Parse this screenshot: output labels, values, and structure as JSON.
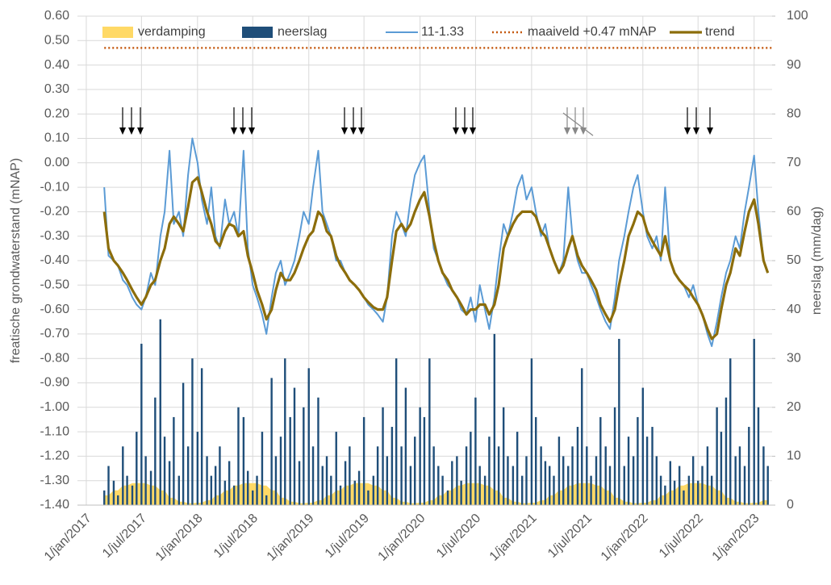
{
  "chart_data": {
    "type": "combo",
    "y_axis_label": "freatische grondwaterstand (mNAP)",
    "y2_axis_label": "neerslag (mm/dag)",
    "xlim": [
      "2016-12-03",
      "2023-03-01"
    ],
    "ylim": [
      -1.4,
      0.6
    ],
    "y2lim": [
      0,
      100
    ],
    "grid": true,
    "legend": "top",
    "xticks": [
      {
        "value": "2017-01-01",
        "label": "1/jan/2017"
      },
      {
        "value": "2017-07-01",
        "label": "1/jul/2017"
      },
      {
        "value": "2018-01-01",
        "label": "1/jan/2018"
      },
      {
        "value": "2018-07-01",
        "label": "1/jul/2018"
      },
      {
        "value": "2019-01-01",
        "label": "1/jan/2019"
      },
      {
        "value": "2019-07-01",
        "label": "1/jul/2019"
      },
      {
        "value": "2020-01-01",
        "label": "1/jan/2020"
      },
      {
        "value": "2020-07-01",
        "label": "1/jul/2020"
      },
      {
        "value": "2021-01-01",
        "label": "1/jan/2021"
      },
      {
        "value": "2021-07-01",
        "label": "1/jul/2021"
      },
      {
        "value": "2022-01-01",
        "label": "1/jan/2022"
      },
      {
        "value": "2022-07-01",
        "label": "1/jul/2022"
      },
      {
        "value": "2023-01-01",
        "label": "1/jan/2023"
      }
    ],
    "yticks": [
      {
        "value": 0.6,
        "label": "0.60"
      },
      {
        "value": 0.5,
        "label": "0.50"
      },
      {
        "value": 0.4,
        "label": "0.40"
      },
      {
        "value": 0.3,
        "label": "0.30"
      },
      {
        "value": 0.2,
        "label": "0.20"
      },
      {
        "value": 0.1,
        "label": "0.10"
      },
      {
        "value": 0,
        "label": "0.00"
      },
      {
        "value": -0.1,
        "label": "-0.10"
      },
      {
        "value": -0.2,
        "label": "-0.20"
      },
      {
        "value": -0.3,
        "label": "-0.30"
      },
      {
        "value": -0.4,
        "label": "-0.40"
      },
      {
        "value": -0.5,
        "label": "-0.50"
      },
      {
        "value": -0.6,
        "label": "-0.60"
      },
      {
        "value": -0.7,
        "label": "-0.70"
      },
      {
        "value": -0.8,
        "label": "-0.80"
      },
      {
        "value": -0.9,
        "label": "-0.90"
      },
      {
        "value": -1.0,
        "label": "-1.00"
      },
      {
        "value": -1.1,
        "label": "-1.10"
      },
      {
        "value": -1.2,
        "label": "-1.20"
      },
      {
        "value": -1.3,
        "label": "-1.30"
      },
      {
        "value": -1.4,
        "label": "-1.40"
      }
    ],
    "y2ticks": [
      0,
      10,
      20,
      30,
      40,
      50,
      60,
      70,
      80,
      90,
      100
    ],
    "x": [
      "2017-03-01",
      "2017-03-15",
      "2017-04-01",
      "2017-04-15",
      "2017-05-01",
      "2017-05-15",
      "2017-06-01",
      "2017-06-15",
      "2017-07-01",
      "2017-07-15",
      "2017-08-01",
      "2017-08-15",
      "2017-09-01",
      "2017-09-15",
      "2017-10-01",
      "2017-10-15",
      "2017-11-01",
      "2017-11-15",
      "2017-12-01",
      "2017-12-15",
      "2018-01-01",
      "2018-01-15",
      "2018-02-01",
      "2018-02-15",
      "2018-03-01",
      "2018-03-15",
      "2018-04-01",
      "2018-04-15",
      "2018-05-01",
      "2018-05-15",
      "2018-06-01",
      "2018-06-15",
      "2018-07-01",
      "2018-07-15",
      "2018-08-01",
      "2018-08-15",
      "2018-09-01",
      "2018-09-15",
      "2018-10-01",
      "2018-10-15",
      "2018-11-01",
      "2018-11-15",
      "2018-12-01",
      "2018-12-15",
      "2019-01-01",
      "2019-01-15",
      "2019-02-01",
      "2019-02-15",
      "2019-03-01",
      "2019-03-15",
      "2019-04-01",
      "2019-04-15",
      "2019-05-01",
      "2019-05-15",
      "2019-06-01",
      "2019-06-15",
      "2019-07-01",
      "2019-07-15",
      "2019-08-01",
      "2019-08-15",
      "2019-09-01",
      "2019-09-15",
      "2019-10-01",
      "2019-10-15",
      "2019-11-01",
      "2019-11-15",
      "2019-12-01",
      "2019-12-15",
      "2020-01-01",
      "2020-01-15",
      "2020-02-01",
      "2020-02-15",
      "2020-03-01",
      "2020-03-15",
      "2020-04-01",
      "2020-04-15",
      "2020-05-01",
      "2020-05-15",
      "2020-06-01",
      "2020-06-15",
      "2020-07-01",
      "2020-07-15",
      "2020-08-01",
      "2020-08-15",
      "2020-09-01",
      "2020-09-15",
      "2020-10-01",
      "2020-10-15",
      "2020-11-01",
      "2020-11-15",
      "2020-12-01",
      "2020-12-15",
      "2021-01-01",
      "2021-01-15",
      "2021-02-01",
      "2021-02-15",
      "2021-03-01",
      "2021-03-15",
      "2021-04-01",
      "2021-04-15",
      "2021-05-01",
      "2021-05-15",
      "2021-06-01",
      "2021-06-15",
      "2021-07-01",
      "2021-07-15",
      "2021-08-01",
      "2021-08-15",
      "2021-09-01",
      "2021-09-15",
      "2021-10-01",
      "2021-10-15",
      "2021-11-01",
      "2021-11-15",
      "2021-12-01",
      "2021-12-15",
      "2022-01-01",
      "2022-01-15",
      "2022-02-01",
      "2022-02-15",
      "2022-03-01",
      "2022-03-15",
      "2022-04-01",
      "2022-04-15",
      "2022-05-01",
      "2022-05-15",
      "2022-06-01",
      "2022-06-15",
      "2022-07-01",
      "2022-07-15",
      "2022-08-01",
      "2022-08-15",
      "2022-09-01",
      "2022-09-15",
      "2022-10-01",
      "2022-10-15",
      "2022-11-01",
      "2022-11-15",
      "2022-12-01",
      "2022-12-15",
      "2023-01-01",
      "2023-01-15",
      "2023-02-01",
      "2023-02-15"
    ],
    "series": [
      {
        "name": "verdamping",
        "type": "area",
        "axis": "y2",
        "color": "#ffd966",
        "values": [
          2,
          2,
          3,
          3,
          4,
          4,
          4.5,
          4.5,
          4.5,
          4.5,
          4,
          4,
          3,
          3,
          1.5,
          1.5,
          0.7,
          0.7,
          0.4,
          0.4,
          0.5,
          0.5,
          1,
          1,
          2,
          2,
          3,
          3,
          4,
          4,
          4.5,
          4.5,
          4.5,
          4.5,
          4,
          4,
          3,
          3,
          1.5,
          1.5,
          0.7,
          0.7,
          0.4,
          0.4,
          0.5,
          0.5,
          1,
          1,
          2,
          2,
          3,
          3,
          4,
          4,
          4.5,
          4.5,
          4.5,
          4.5,
          4,
          4,
          3,
          3,
          1.5,
          1.5,
          0.7,
          0.7,
          0.4,
          0.4,
          0.5,
          0.5,
          1,
          1,
          2,
          2,
          3,
          3,
          4,
          4,
          4.5,
          4.5,
          4.5,
          4.5,
          4,
          4,
          3,
          3,
          1.5,
          1.5,
          0.7,
          0.7,
          0.4,
          0.4,
          0.5,
          0.5,
          1,
          1,
          2,
          2,
          3,
          3,
          4,
          4,
          4.5,
          4.5,
          4.5,
          4.5,
          4,
          4,
          3,
          3,
          1.5,
          1.5,
          0.7,
          0.7,
          0.4,
          0.4,
          0.5,
          0.5,
          1,
          1,
          2,
          2,
          3,
          3,
          4,
          4,
          4.5,
          4.5,
          4.5,
          4.5,
          4,
          4,
          3,
          3,
          1.5,
          1.5,
          0.7,
          0.7,
          0.4,
          0.4,
          0.5,
          0.5,
          1,
          1
        ]
      },
      {
        "name": "neerslag",
        "type": "bar",
        "axis": "y2",
        "color": "#1f4e79",
        "values": [
          3,
          8,
          5,
          2,
          12,
          6,
          4,
          15,
          33,
          10,
          7,
          22,
          38,
          14,
          9,
          18,
          6,
          25,
          12,
          30,
          15,
          28,
          10,
          6,
          8,
          12,
          5,
          9,
          4,
          20,
          18,
          7,
          3,
          6,
          15,
          2,
          26,
          10,
          14,
          30,
          18,
          24,
          9,
          20,
          28,
          12,
          22,
          8,
          10,
          6,
          15,
          4,
          9,
          12,
          5,
          7,
          18,
          3,
          6,
          12,
          20,
          10,
          16,
          30,
          12,
          24,
          8,
          14,
          20,
          18,
          30,
          12,
          8,
          6,
          3,
          9,
          10,
          5,
          12,
          15,
          22,
          8,
          6,
          14,
          35,
          12,
          20,
          10,
          8,
          15,
          6,
          10,
          30,
          18,
          12,
          9,
          8,
          6,
          14,
          10,
          8,
          12,
          16,
          28,
          12,
          6,
          10,
          18,
          12,
          8,
          20,
          34,
          8,
          14,
          10,
          18,
          24,
          14,
          16,
          10,
          6,
          4,
          9,
          5,
          8,
          3,
          6,
          10,
          5,
          8,
          12,
          6,
          20,
          15,
          22,
          30,
          10,
          12,
          8,
          16,
          34,
          20,
          12,
          8
        ]
      },
      {
        "name": "11-1.33",
        "type": "line",
        "color": "#5b9bd5",
        "values": [
          -0.1,
          -0.38,
          -0.4,
          -0.42,
          -0.48,
          -0.5,
          -0.55,
          -0.58,
          -0.6,
          -0.55,
          -0.45,
          -0.5,
          -0.3,
          -0.2,
          0.05,
          -0.25,
          -0.2,
          -0.3,
          -0.05,
          0.1,
          0.0,
          -0.15,
          -0.25,
          -0.1,
          -0.3,
          -0.35,
          -0.15,
          -0.25,
          -0.2,
          -0.3,
          0.05,
          -0.35,
          -0.5,
          -0.55,
          -0.62,
          -0.7,
          -0.55,
          -0.45,
          -0.4,
          -0.5,
          -0.45,
          -0.4,
          -0.3,
          -0.2,
          -0.25,
          -0.1,
          0.05,
          -0.2,
          -0.25,
          -0.3,
          -0.4,
          -0.4,
          -0.45,
          -0.48,
          -0.5,
          -0.52,
          -0.55,
          -0.58,
          -0.6,
          -0.62,
          -0.65,
          -0.55,
          -0.3,
          -0.2,
          -0.25,
          -0.3,
          -0.15,
          -0.05,
          0.0,
          0.03,
          -0.2,
          -0.35,
          -0.4,
          -0.45,
          -0.5,
          -0.52,
          -0.55,
          -0.6,
          -0.62,
          -0.55,
          -0.65,
          -0.5,
          -0.6,
          -0.68,
          -0.55,
          -0.4,
          -0.25,
          -0.3,
          -0.2,
          -0.1,
          -0.05,
          -0.15,
          -0.1,
          -0.2,
          -0.3,
          -0.25,
          -0.35,
          -0.4,
          -0.45,
          -0.4,
          -0.1,
          -0.3,
          -0.4,
          -0.45,
          -0.45,
          -0.5,
          -0.55,
          -0.6,
          -0.65,
          -0.68,
          -0.55,
          -0.4,
          -0.3,
          -0.2,
          -0.1,
          -0.05,
          -0.2,
          -0.3,
          -0.35,
          -0.3,
          -0.4,
          -0.1,
          -0.4,
          -0.45,
          -0.48,
          -0.5,
          -0.55,
          -0.5,
          -0.58,
          -0.62,
          -0.7,
          -0.75,
          -0.65,
          -0.55,
          -0.45,
          -0.4,
          -0.3,
          -0.35,
          -0.2,
          -0.1,
          0.03,
          -0.2,
          -0.4,
          -0.45
        ]
      },
      {
        "name": "maaiveld +0.47 mNAP",
        "type": "hline",
        "color": "#c55a11",
        "value": 0.47
      },
      {
        "name": "trend",
        "type": "line",
        "color": "#8c6d0b",
        "values": [
          -0.2,
          -0.35,
          -0.4,
          -0.42,
          -0.45,
          -0.48,
          -0.52,
          -0.55,
          -0.58,
          -0.55,
          -0.5,
          -0.48,
          -0.4,
          -0.35,
          -0.25,
          -0.22,
          -0.25,
          -0.28,
          -0.18,
          -0.08,
          -0.06,
          -0.12,
          -0.2,
          -0.25,
          -0.32,
          -0.34,
          -0.28,
          -0.25,
          -0.26,
          -0.3,
          -0.28,
          -0.38,
          -0.45,
          -0.52,
          -0.58,
          -0.64,
          -0.6,
          -0.52,
          -0.45,
          -0.48,
          -0.48,
          -0.45,
          -0.4,
          -0.35,
          -0.3,
          -0.28,
          -0.2,
          -0.22,
          -0.28,
          -0.3,
          -0.38,
          -0.42,
          -0.45,
          -0.48,
          -0.5,
          -0.52,
          -0.55,
          -0.57,
          -0.59,
          -0.6,
          -0.6,
          -0.55,
          -0.4,
          -0.28,
          -0.25,
          -0.28,
          -0.25,
          -0.2,
          -0.15,
          -0.12,
          -0.22,
          -0.32,
          -0.4,
          -0.45,
          -0.48,
          -0.52,
          -0.55,
          -0.58,
          -0.62,
          -0.6,
          -0.6,
          -0.58,
          -0.58,
          -0.62,
          -0.58,
          -0.5,
          -0.35,
          -0.3,
          -0.25,
          -0.22,
          -0.2,
          -0.2,
          -0.2,
          -0.22,
          -0.28,
          -0.3,
          -0.35,
          -0.4,
          -0.45,
          -0.42,
          -0.35,
          -0.3,
          -0.38,
          -0.42,
          -0.45,
          -0.48,
          -0.52,
          -0.58,
          -0.62,
          -0.65,
          -0.6,
          -0.5,
          -0.4,
          -0.3,
          -0.25,
          -0.2,
          -0.22,
          -0.28,
          -0.32,
          -0.35,
          -0.38,
          -0.3,
          -0.4,
          -0.45,
          -0.48,
          -0.5,
          -0.52,
          -0.55,
          -0.58,
          -0.62,
          -0.68,
          -0.72,
          -0.7,
          -0.6,
          -0.5,
          -0.45,
          -0.35,
          -0.38,
          -0.28,
          -0.2,
          -0.15,
          -0.25,
          -0.4,
          -0.45
        ]
      }
    ]
  }
}
